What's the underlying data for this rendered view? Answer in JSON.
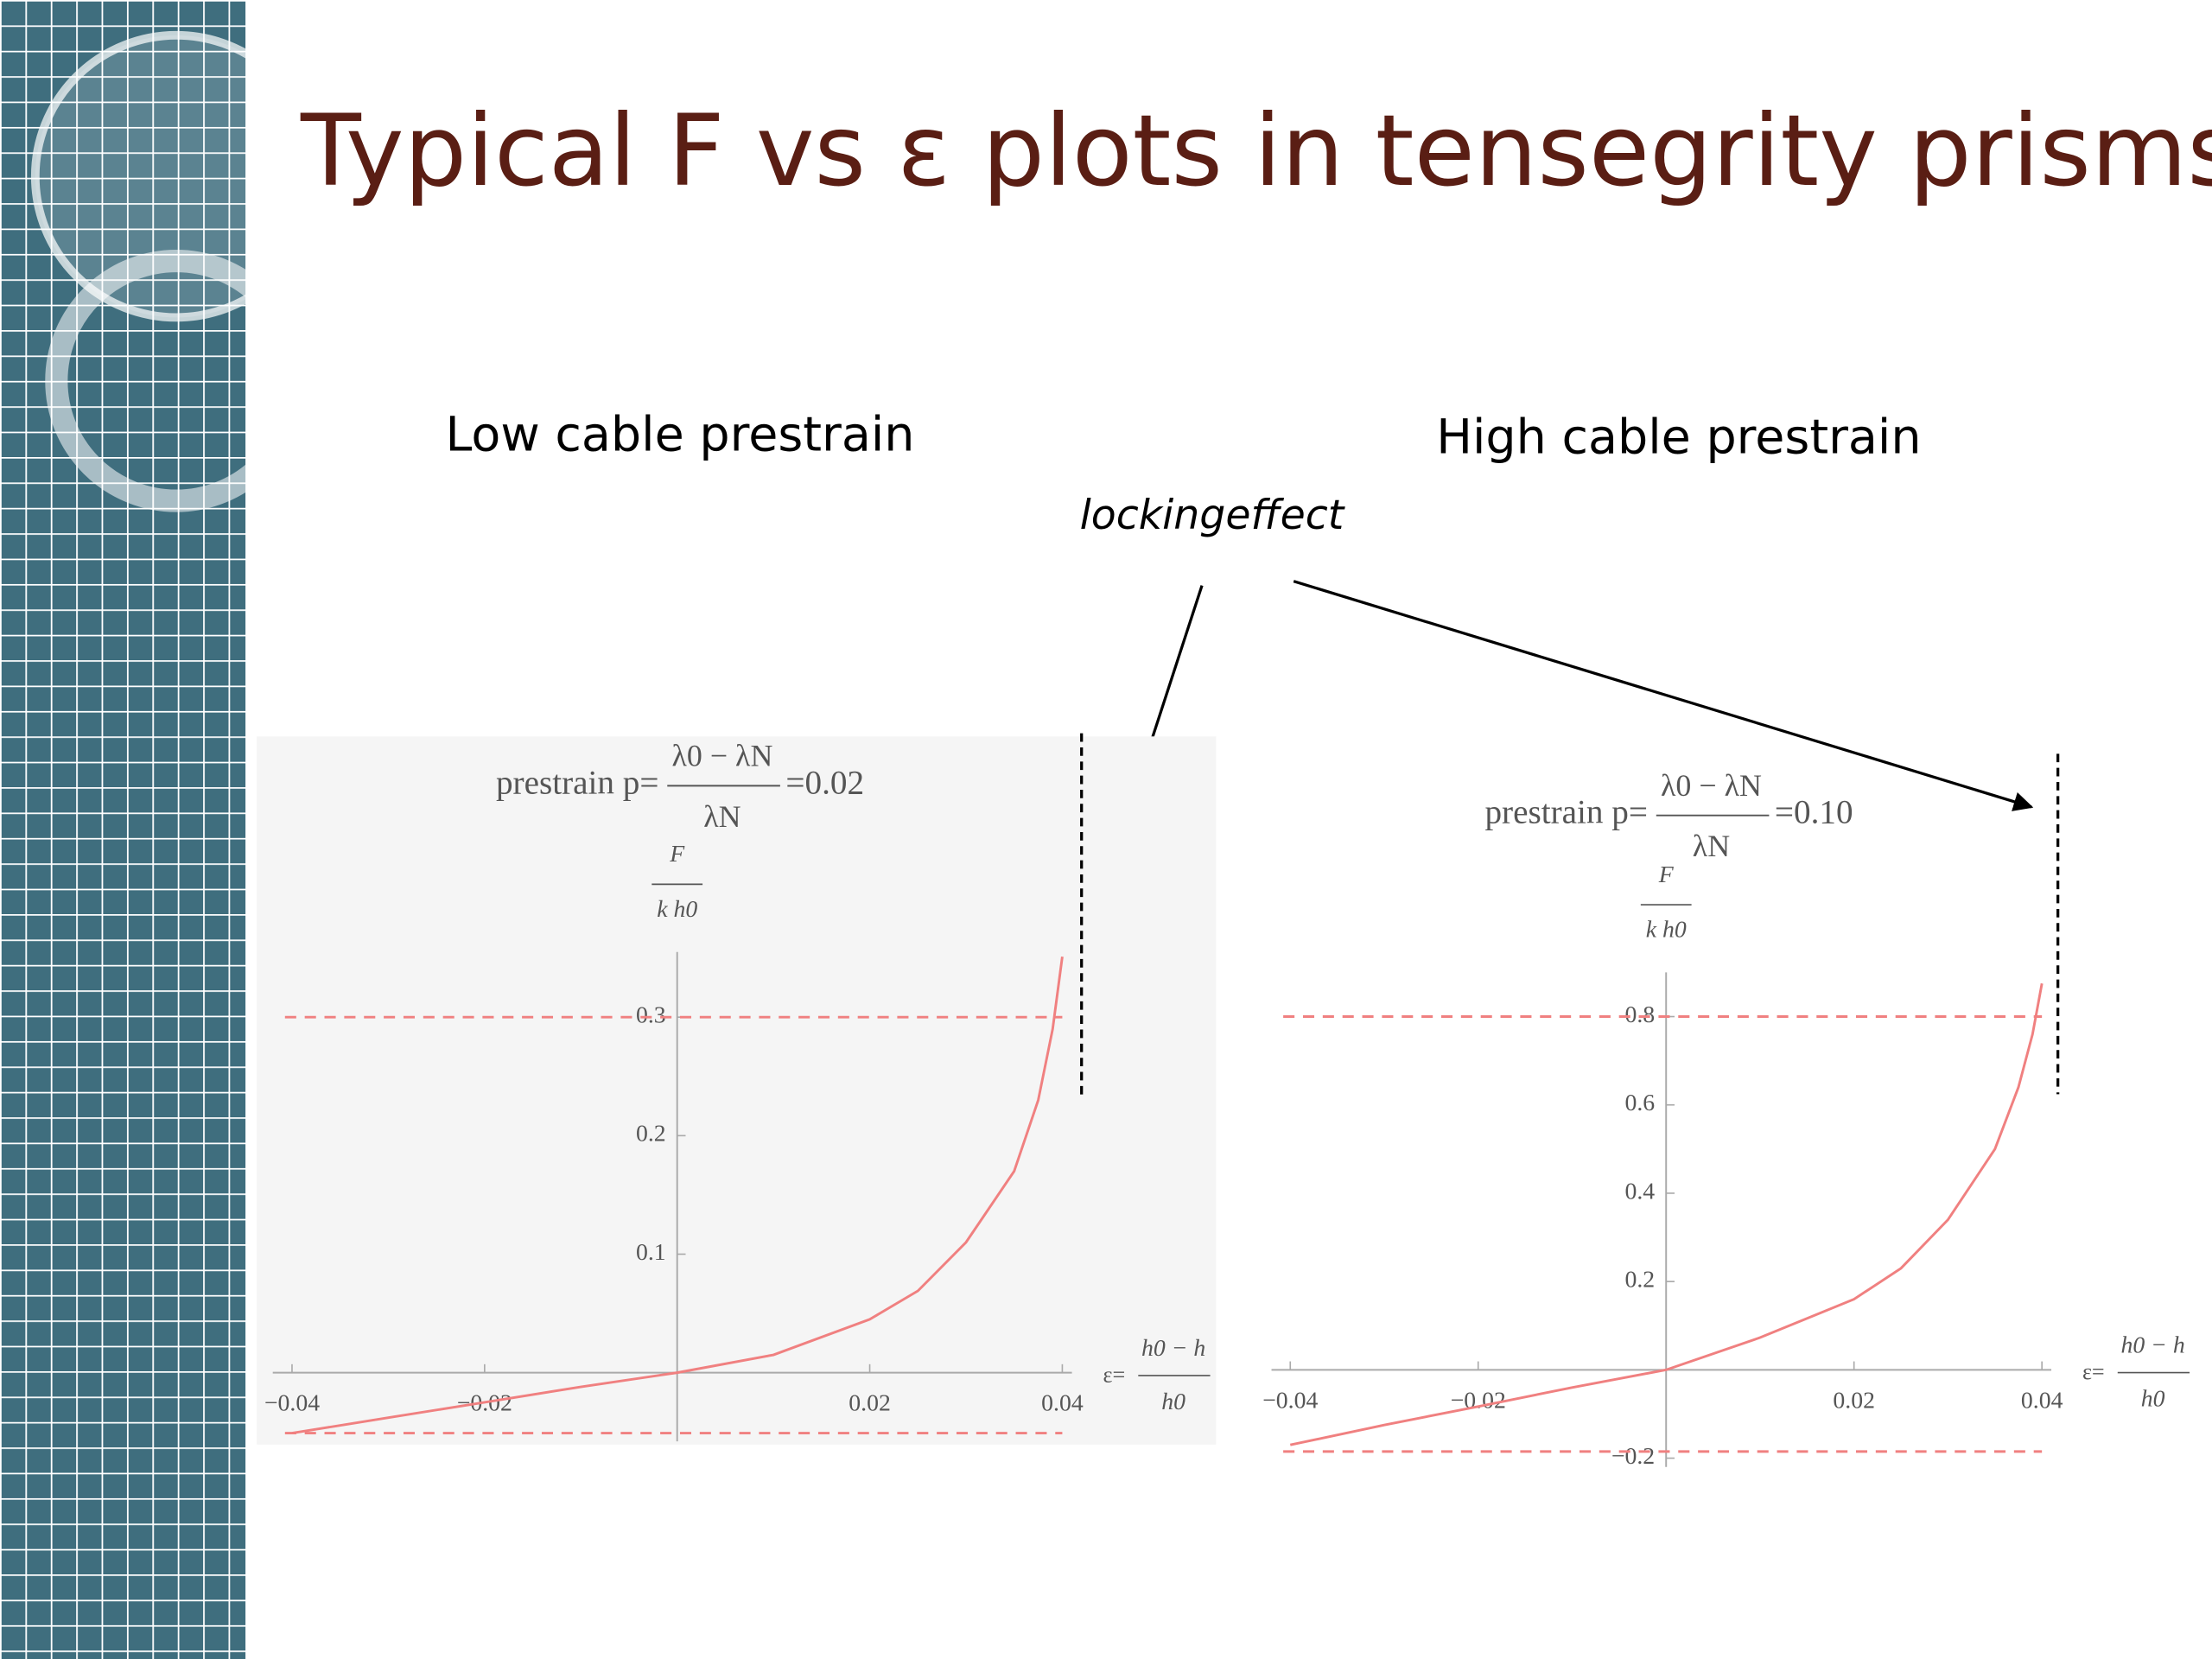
{
  "title": "Typical F vs ε plots in tensegrity prisms",
  "annotation": "lockingeffect",
  "chart_data": [
    {
      "type": "line",
      "subtitle": "Low cable prestrain",
      "formula": {
        "prefix": "prestrain p=",
        "numerator": "λ0 − λN",
        "denominator": "λN",
        "value": "=0.02"
      },
      "ylabel": {
        "numerator": "F",
        "denominator": "k h0"
      },
      "xlabel": {
        "prefix": "ε=",
        "numerator": "h0 − h",
        "denominator": "h0"
      },
      "x": [
        -0.04,
        -0.03,
        -0.02,
        -0.01,
        0,
        0.01,
        0.02,
        0.025,
        0.03,
        0.035,
        0.0375,
        0.039,
        0.04
      ],
      "series": [
        {
          "color": "#f08080",
          "values": [
            -0.051,
            -0.038,
            -0.025,
            -0.012,
            0,
            0.015,
            0.045,
            0.069,
            0.11,
            0.17,
            0.23,
            0.29,
            0.351
          ]
        }
      ],
      "xlim": [
        -0.042,
        0.041
      ],
      "ylim": [
        -0.058,
        0.355
      ],
      "xticks": [
        {
          "value": -0.04,
          "label": "−0.04"
        },
        {
          "value": -0.02,
          "label": "−0.02"
        },
        0.02,
        0.04
      ],
      "yticks": [
        0.1,
        0.2,
        0.3
      ],
      "hlines": {
        "values": [
          0.3,
          -0.051
        ],
        "color": "#f08080"
      },
      "vline": {
        "value": 0.042,
        "color": "#000000"
      }
    },
    {
      "type": "line",
      "subtitle": "High cable prestrain",
      "formula": {
        "prefix": "prestrain p=",
        "numerator": "λ0 − λN",
        "denominator": "λN",
        "value": "=0.10"
      },
      "ylabel": {
        "numerator": "F",
        "denominator": "k h0"
      },
      "xlabel": {
        "prefix": "ε=",
        "numerator": "h0 − h",
        "denominator": "h0"
      },
      "x": [
        -0.04,
        -0.03,
        -0.02,
        -0.01,
        0,
        0.01,
        0.02,
        0.025,
        0.03,
        0.035,
        0.0375,
        0.039,
        0.04
      ],
      "series": [
        {
          "color": "#f08080",
          "values": [
            -0.17,
            -0.125,
            -0.083,
            -0.04,
            0,
            0.073,
            0.16,
            0.23,
            0.34,
            0.5,
            0.64,
            0.76,
            0.875
          ]
        }
      ],
      "xlim": [
        -0.042,
        0.041
      ],
      "ylim": [
        -0.22,
        0.9
      ],
      "xticks": [
        {
          "value": -0.04,
          "label": "−0.04"
        },
        {
          "value": -0.02,
          "label": "−0.02"
        },
        0.02,
        0.04
      ],
      "yticks": [
        {
          "value": -0.2,
          "label": "−0.2"
        },
        0.2,
        0.4,
        0.6,
        0.8
      ],
      "hlines": {
        "values": [
          0.8,
          -0.185
        ],
        "color": "#f08080"
      },
      "vline": {
        "value": 0.0417,
        "color": "#000000"
      }
    }
  ]
}
